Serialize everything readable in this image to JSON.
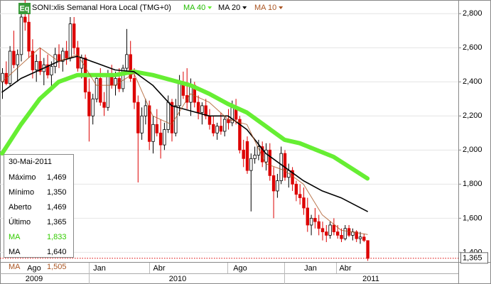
{
  "chart_data": {
    "type": "candlestick",
    "icon": "Eq",
    "title": "SONI:xlis Semanal Hora Local (TMG+0)",
    "ylim": [
      1360,
      2880
    ],
    "yticks": [
      {
        "value": 2800,
        "label": "2,800"
      },
      {
        "value": 2600,
        "label": "2,600"
      },
      {
        "value": 2400,
        "label": "2,400"
      },
      {
        "value": 2200,
        "label": "2,200"
      },
      {
        "value": 2000,
        "label": "2,000"
      },
      {
        "value": 1800,
        "label": "1,800"
      },
      {
        "value": 1600,
        "label": "1,600"
      },
      {
        "value": 1400,
        "label": "1,400"
      }
    ],
    "last_price": {
      "value": 1365,
      "label": "1,365"
    },
    "months": [
      "Ago",
      "Jan",
      "Abr",
      "Ago",
      "Jan",
      "Abr"
    ],
    "years": [
      "2009",
      "2010",
      "2011"
    ],
    "up_color": "#ffffff",
    "down_color": "#dd0000",
    "ohlc": [
      [
        2400,
        2480,
        2300,
        2450
      ],
      [
        2450,
        2520,
        2380,
        2390
      ],
      [
        2390,
        2610,
        2370,
        2580
      ],
      [
        2580,
        2700,
        2480,
        2500
      ],
      [
        2500,
        2590,
        2400,
        2560
      ],
      [
        2560,
        2820,
        2520,
        2780
      ],
      [
        2780,
        2880,
        2700,
        2750
      ],
      [
        2750,
        2800,
        2540,
        2580
      ],
      [
        2580,
        2650,
        2420,
        2470
      ],
      [
        2470,
        2560,
        2400,
        2520
      ],
      [
        2520,
        2600,
        2440,
        2460
      ],
      [
        2460,
        2540,
        2380,
        2500
      ],
      [
        2500,
        2560,
        2420,
        2440
      ],
      [
        2440,
        2520,
        2370,
        2490
      ],
      [
        2490,
        2600,
        2450,
        2560
      ],
      [
        2560,
        2620,
        2480,
        2520
      ],
      [
        2520,
        2600,
        2460,
        2580
      ],
      [
        2580,
        2640,
        2500,
        2540
      ],
      [
        2540,
        2780,
        2520,
        2740
      ],
      [
        2740,
        2780,
        2560,
        2600
      ],
      [
        2600,
        2640,
        2460,
        2480
      ],
      [
        2480,
        2560,
        2420,
        2540
      ],
      [
        2540,
        2560,
        2300,
        2340
      ],
      [
        2340,
        2420,
        2050,
        2200
      ],
      [
        2200,
        2330,
        2150,
        2300
      ],
      [
        2300,
        2450,
        2280,
        2420
      ],
      [
        2420,
        2480,
        2260,
        2280
      ],
      [
        2280,
        2340,
        2200,
        2250
      ],
      [
        2250,
        2470,
        2230,
        2440
      ],
      [
        2440,
        2500,
        2360,
        2380
      ],
      [
        2380,
        2460,
        2320,
        2420
      ],
      [
        2420,
        2480,
        2340,
        2360
      ],
      [
        2360,
        2500,
        2340,
        2480
      ],
      [
        2480,
        2710,
        2450,
        2560
      ],
      [
        2560,
        2640,
        2400,
        2420
      ],
      [
        2420,
        2480,
        2240,
        2280
      ],
      [
        2280,
        2320,
        1810,
        2100
      ],
      [
        2100,
        2250,
        2060,
        2200
      ],
      [
        2200,
        2300,
        2150,
        2260
      ],
      [
        2260,
        2290,
        2000,
        2050
      ],
      [
        2050,
        2200,
        1980,
        2150
      ],
      [
        2150,
        2240,
        2080,
        2100
      ],
      [
        2100,
        2180,
        1950,
        2030
      ],
      [
        2030,
        2160,
        2000,
        2120
      ],
      [
        2120,
        2320,
        2100,
        2280
      ],
      [
        2280,
        2300,
        2050,
        2100
      ],
      [
        2100,
        2300,
        2080,
        2260
      ],
      [
        2260,
        2440,
        2200,
        2400
      ],
      [
        2400,
        2460,
        2300,
        2320
      ],
      [
        2320,
        2480,
        2240,
        2280
      ],
      [
        2280,
        2420,
        2200,
        2380
      ],
      [
        2380,
        2400,
        2250,
        2280
      ],
      [
        2280,
        2320,
        2180,
        2220
      ],
      [
        2220,
        2280,
        2150,
        2260
      ],
      [
        2260,
        2300,
        2180,
        2200
      ],
      [
        2200,
        2240,
        2120,
        2150
      ],
      [
        2150,
        2200,
        2080,
        2100
      ],
      [
        2100,
        2160,
        2060,
        2140
      ],
      [
        2140,
        2220,
        2090,
        2110
      ],
      [
        2110,
        2200,
        2080,
        2180
      ],
      [
        2180,
        2240,
        2120,
        2160
      ],
      [
        2160,
        2290,
        2140,
        2250
      ],
      [
        2250,
        2300,
        2150,
        2180
      ],
      [
        2180,
        2200,
        1980,
        2000
      ],
      [
        2000,
        2060,
        1900,
        1950
      ],
      [
        2050,
        2080,
        1860,
        1880
      ],
      [
        1880,
        1980,
        1640,
        1950
      ],
      [
        1950,
        2020,
        1920,
        1970
      ],
      [
        1970,
        2060,
        1940,
        2020
      ],
      [
        2020,
        2050,
        1900,
        1930
      ],
      [
        1930,
        2040,
        1880,
        2000
      ],
      [
        2000,
        2040,
        1820,
        1850
      ],
      [
        1850,
        1900,
        1600,
        1760
      ],
      [
        1760,
        1860,
        1720,
        1820
      ],
      [
        1820,
        2020,
        1800,
        1980
      ],
      [
        1980,
        2000,
        1820,
        1840
      ],
      [
        1840,
        1920,
        1780,
        1880
      ],
      [
        1880,
        1900,
        1760,
        1800
      ],
      [
        1800,
        1820,
        1700,
        1740
      ],
      [
        1740,
        1800,
        1680,
        1720
      ],
      [
        1720,
        1780,
        1620,
        1660
      ],
      [
        1660,
        1720,
        1520,
        1560
      ],
      [
        1560,
        1620,
        1500,
        1600
      ],
      [
        1600,
        1660,
        1540,
        1580
      ],
      [
        1580,
        1620,
        1500,
        1540
      ],
      [
        1540,
        1580,
        1470,
        1520
      ],
      [
        1520,
        1560,
        1460,
        1500
      ],
      [
        1500,
        1580,
        1480,
        1560
      ],
      [
        1560,
        1600,
        1500,
        1520
      ],
      [
        1520,
        1560,
        1480,
        1500
      ],
      [
        1500,
        1540,
        1460,
        1480
      ],
      [
        1480,
        1560,
        1470,
        1540
      ],
      [
        1540,
        1560,
        1490,
        1500
      ],
      [
        1500,
        1540,
        1470,
        1520
      ],
      [
        1520,
        1530,
        1460,
        1480
      ],
      [
        1480,
        1520,
        1450,
        1490
      ],
      [
        1490,
        1510,
        1460,
        1470
      ],
      [
        1469,
        1469,
        1350,
        1365
      ]
    ],
    "series": [
      {
        "name": "MA 40",
        "color": "#66ee33",
        "x": [
          0,
          5,
          10,
          15,
          20,
          25,
          30,
          35,
          40,
          45,
          50,
          55,
          60,
          65,
          70,
          75,
          79,
          88,
          97
        ],
        "values": [
          1980,
          2150,
          2300,
          2400,
          2440,
          2440,
          2440,
          2460,
          2440,
          2410,
          2380,
          2330,
          2270,
          2220,
          2140,
          2060,
          2040,
          1960,
          1833
        ]
      },
      {
        "name": "MA 20",
        "color": "#000000",
        "x": [
          0,
          5,
          10,
          15,
          20,
          25,
          30,
          35,
          40,
          45,
          50,
          55,
          60,
          65,
          70,
          75,
          80,
          85,
          90,
          97
        ],
        "values": [
          2340,
          2420,
          2470,
          2520,
          2550,
          2510,
          2470,
          2460,
          2380,
          2260,
          2230,
          2200,
          2200,
          2120,
          1980,
          1900,
          1820,
          1760,
          1720,
          1640
        ]
      },
      {
        "name": "MA 10",
        "color": "#aa5522",
        "x": [
          0,
          5,
          10,
          15,
          20,
          25,
          30,
          35,
          40,
          45,
          50,
          55,
          60,
          65,
          70,
          75,
          80,
          85,
          90,
          97
        ],
        "values": [
          2400,
          2500,
          2600,
          2520,
          2560,
          2380,
          2380,
          2450,
          2200,
          2150,
          2330,
          2280,
          2180,
          2150,
          1920,
          1880,
          1800,
          1620,
          1530,
          1505
        ]
      }
    ],
    "info": {
      "date": "30-Mai-2011",
      "rows": [
        {
          "label": "Máximo",
          "value": {
            "value": 1469,
            "label": "1,469"
          }
        },
        {
          "label": "Mínimo",
          "value": {
            "value": 1350,
            "label": "1,350"
          }
        },
        {
          "label": "Aberto",
          "value": {
            "value": 1469,
            "label": "1,469"
          }
        },
        {
          "label": "Último",
          "value": {
            "value": 1365,
            "label": "1,365"
          }
        },
        {
          "label": "MA",
          "value": {
            "value": 1833,
            "label": "1,833"
          },
          "color": "#33cc00"
        },
        {
          "label": "MA",
          "value": {
            "value": 1640,
            "label": "1,640"
          },
          "color": "#000000"
        },
        {
          "label": "MA",
          "value": {
            "value": 1505,
            "label": "1,505"
          },
          "color": "#aa5522"
        }
      ]
    }
  }
}
